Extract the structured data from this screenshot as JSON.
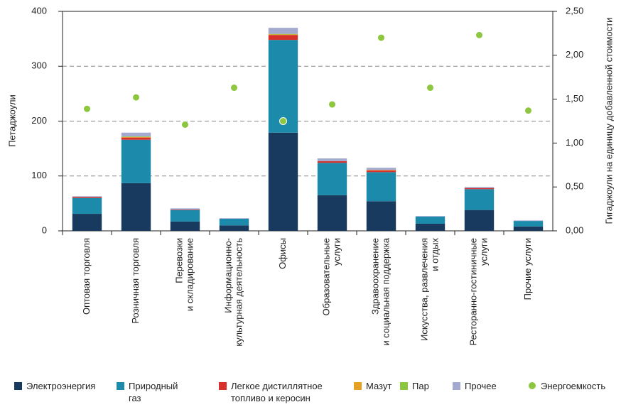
{
  "chart_data": {
    "type": "bar",
    "stacked": true,
    "categories": [
      [
        "Оптовая торговля"
      ],
      [
        "Розничная торговля"
      ],
      [
        "Перевозки",
        "и складирование"
      ],
      [
        "Информационно-",
        "культурная деятельность"
      ],
      [
        "Офисы"
      ],
      [
        "Образовательные",
        "услуги"
      ],
      [
        "Здравоохранение",
        "и социальная поддержка"
      ],
      [
        "Искусства, развлечения",
        "и отдых"
      ],
      [
        "Ресторанно-гостиничные",
        "услуги"
      ],
      [
        "Прочие услуги"
      ]
    ],
    "ylabel": "Петаджоули",
    "y2label": "Гигаджоули на единицу добавленной стоимости",
    "ylim": [
      0,
      400
    ],
    "yticks": [
      0,
      100,
      200,
      300,
      400
    ],
    "y2lim": [
      0,
      2.5
    ],
    "y2ticks": [
      {
        "value": 0,
        "label": "0,00"
      },
      {
        "value": 0.5,
        "label": "0,50"
      },
      {
        "value": 1,
        "label": "1,00"
      },
      {
        "value": 1.5,
        "label": "1,50"
      },
      {
        "value": 2,
        "label": "2,00"
      },
      {
        "value": 2.5,
        "label": "2,50"
      }
    ],
    "grid": true,
    "series": [
      {
        "name": "Электроэнергия",
        "color": "#173a5e",
        "values": [
          31,
          87,
          17,
          10,
          179,
          65,
          54,
          13,
          38,
          8
        ]
      },
      {
        "name": "Природный газ",
        "color": "#1b8aab",
        "values": [
          29,
          79,
          21,
          12,
          169,
          59,
          53,
          13,
          38,
          10
        ]
      },
      {
        "name": "Легкое дистиллятное топливо и керосин",
        "color": "#d8312c",
        "values": [
          2,
          4,
          1,
          0,
          9,
          3,
          3,
          0,
          2,
          0
        ]
      },
      {
        "name": "Мазут",
        "color": "#e5a123",
        "values": [
          0,
          1,
          0,
          0,
          1,
          0,
          1,
          0,
          0,
          0
        ]
      },
      {
        "name": "Пар",
        "color": "#8dc63f",
        "values": [
          0,
          1,
          0,
          0,
          1,
          0,
          0,
          0,
          0,
          0
        ]
      },
      {
        "name": "Прочее",
        "color": "#a3a9cf",
        "values": [
          1,
          7,
          2,
          1,
          11,
          5,
          4,
          1,
          2,
          1
        ]
      },
      {
        "name": "Энергоемкость",
        "color": "#8dc63f",
        "type": "scatter",
        "axis": "y2",
        "values": [
          1.39,
          1.52,
          1.21,
          1.63,
          1.25,
          1.44,
          2.2,
          1.63,
          2.23,
          1.37
        ]
      }
    ]
  }
}
